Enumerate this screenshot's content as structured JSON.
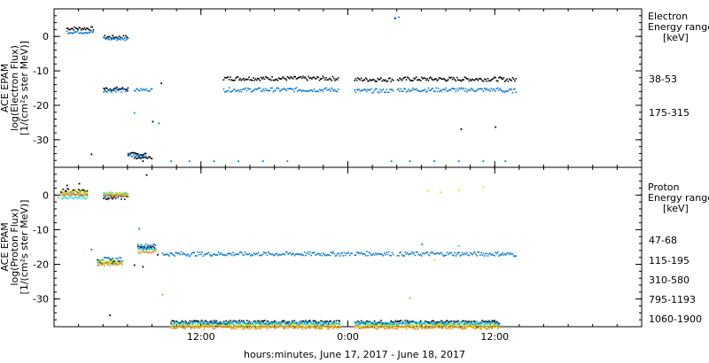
{
  "chart_data": [
    {
      "type": "scatter",
      "panel": "electron",
      "ylabel_lines": [
        "ACE EPAM",
        "log(Electron Flux)",
        "[1/(cm²s ster MeV)]"
      ],
      "legend_title": [
        "Electron",
        "Energy range",
        "[keV]"
      ],
      "legend_placement": "right",
      "ylim": [
        -38,
        8
      ],
      "yticks": [
        0,
        -10,
        -20,
        -30
      ],
      "xlim": [
        0,
        48
      ],
      "series": [
        {
          "name": "38-53",
          "color": "#000000",
          "segments": [
            [
              1,
              2.5,
              0.5
            ],
            [
              4,
              0,
              0.5
            ],
            [
              4,
              -15,
              0.5
            ],
            [
              6,
              -34,
              0.5
            ],
            [
              6.5,
              -35,
              0.3
            ],
            [
              13.8,
              -12,
              0.6
            ],
            [
              24.5,
              -12.3,
              0.6
            ],
            [
              28,
              -12.2,
              0.6
            ],
            [
              36.5,
              -12.3,
              0.6
            ]
          ],
          "points": [
            [
              8,
              -24.5
            ],
            [
              8.7,
              -13.4
            ],
            [
              3,
              -34
            ],
            [
              6,
              -33.8
            ],
            [
              7.2,
              -36
            ],
            [
              33.2,
              -26.7
            ],
            [
              36,
              -26.1
            ],
            [
              27.8,
              5.5
            ]
          ]
        },
        {
          "name": "175-315",
          "color": "#0c7bd6",
          "segments": [
            [
              1,
              1.5,
              0.5
            ],
            [
              4,
              -0.5,
              0.5
            ],
            [
              4,
              -15.5,
              0.5
            ],
            [
              6,
              -34.5,
              0.6
            ],
            [
              6.5,
              -15.3,
              0.4
            ],
            [
              13.8,
              -15.3,
              0.6
            ],
            [
              24.5,
              -15.6,
              0.6
            ],
            [
              28,
              -15.3,
              0.6
            ],
            [
              36.5,
              -15.6,
              0.6
            ]
          ],
          "points": [
            [
              6.5,
              -22
            ],
            [
              8.5,
              -25
            ],
            [
              9.5,
              -36
            ],
            [
              11,
              -36
            ],
            [
              13,
              -36
            ],
            [
              15,
              -36
            ],
            [
              17,
              -36
            ],
            [
              19,
              -36
            ],
            [
              27.5,
              -36
            ],
            [
              29,
              -36
            ],
            [
              31,
              -36
            ],
            [
              33,
              -36
            ],
            [
              35,
              -36
            ],
            [
              36.8,
              -36
            ],
            [
              28.1,
              5.8
            ]
          ]
        }
      ]
    },
    {
      "type": "scatter",
      "panel": "proton",
      "ylabel_lines": [
        "ACE EPAM",
        "log(Proton Flux)",
        "[1/(cm²s ster MeV)]"
      ],
      "legend_title": [
        "Proton",
        "Energy range",
        "[keV]"
      ],
      "legend_placement": "right",
      "ylim": [
        -38,
        8
      ],
      "yticks": [
        0,
        -10,
        -20,
        -30
      ],
      "xlim": [
        0,
        48
      ],
      "series": [
        {
          "name": "47-68",
          "color": "#000000",
          "segments": [
            [
              0.5,
              1.5,
              0.6
            ],
            [
              4,
              -0.5,
              0.6
            ],
            [
              3.5,
              -19,
              0.6
            ],
            [
              6.8,
              -15,
              0.4
            ],
            [
              9.5,
              -36.5,
              0.5
            ],
            [
              24.5,
              -36.5,
              0.5
            ]
          ],
          "points": [
            [
              1,
              3
            ],
            [
              2,
              3.5
            ],
            [
              6.5,
              -20
            ],
            [
              7.2,
              -20.5
            ],
            [
              8.4,
              -17
            ],
            [
              7.5,
              6
            ],
            [
              4.5,
              -34.5
            ]
          ]
        },
        {
          "name": "115-195",
          "color": "#0c7bd6",
          "segments": [
            [
              0.5,
              0.5,
              0.4
            ],
            [
              4,
              0.2,
              0.5
            ],
            [
              3.5,
              -18.3,
              0.5
            ],
            [
              6.8,
              -14.3,
              0.4
            ],
            [
              8.8,
              -16.8,
              0.6
            ],
            [
              24.5,
              -16.7,
              0.6
            ],
            [
              28,
              -16.8,
              0.6
            ],
            [
              36.5,
              -16.9,
              0.6
            ],
            [
              9.5,
              -36.8,
              0.5
            ],
            [
              24.5,
              -36.8,
              0.5
            ]
          ],
          "points": [
            [
              6.9,
              -9.5
            ],
            [
              30,
              -14
            ],
            [
              3,
              -15.5
            ]
          ]
        },
        {
          "name": "310-580",
          "color": "#25ddd8",
          "segments": [
            [
              0.5,
              -0.5,
              0.4
            ],
            [
              4,
              0.6,
              0.5
            ],
            [
              3.5,
              -19.5,
              0.5
            ],
            [
              6.8,
              -15.5,
              0.4
            ],
            [
              9.5,
              -37,
              0.5
            ],
            [
              24.5,
              -37,
              0.5
            ]
          ],
          "points": [
            [
              33,
              -14.5
            ]
          ]
        },
        {
          "name": "795-1193",
          "color": "#d9e516",
          "segments": [
            [
              0.5,
              1.0,
              0.4
            ],
            [
              4,
              0.5,
              0.5
            ],
            [
              3.5,
              -19,
              0.5
            ],
            [
              9.5,
              -37.6,
              0.5
            ],
            [
              24.5,
              -37.6,
              0.5
            ]
          ],
          "points": [
            [
              30.5,
              1.5
            ],
            [
              31.5,
              1
            ],
            [
              33,
              1.8
            ],
            [
              35,
              2.5
            ],
            [
              31,
              -18.5
            ]
          ]
        },
        {
          "name": "1060-1900",
          "color": "#ee8c1a",
          "segments": [
            [
              0.5,
              0.4,
              0.5
            ],
            [
              4,
              0,
              0.5
            ],
            [
              3.5,
              -19.8,
              0.5
            ],
            [
              6.8,
              -16.3,
              0.4
            ],
            [
              9.5,
              -38,
              0.5
            ],
            [
              24.5,
              -38,
              0.5
            ]
          ],
          "points": [
            [
              8.8,
              -28.5
            ],
            [
              29,
              -29.5
            ],
            [
              0.3,
              -0.5
            ]
          ]
        }
      ]
    }
  ],
  "xaxis": {
    "title": "hours:minutes, June 17, 2017 - June 18, 2017",
    "ticks": [
      {
        "hour": 12,
        "label": "12:00"
      },
      {
        "hour": 24,
        "label": "0:00"
      },
      {
        "hour": 36,
        "label": "12:00"
      }
    ]
  }
}
